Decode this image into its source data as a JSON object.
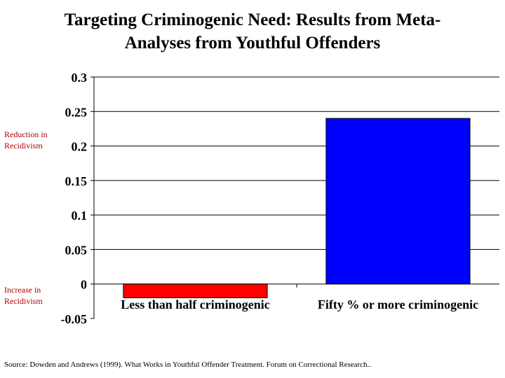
{
  "title_lines": [
    "Targeting Criminogenic Need: Results from Meta-",
    "Analyses from Youthful Offenders"
  ],
  "side_notes": {
    "reduction": "Reduction in Recidivism",
    "increase": "Increase in Recidivism"
  },
  "source": "Source:  Dowden and Andrews (1999).  What Works in Youthful Offender Treatment. Forum on Correctional Research..",
  "chart_data": {
    "type": "bar",
    "title": "Targeting Criminogenic Need: Results from Meta-Analyses from Youthful Offenders",
    "categories": [
      "Less than half criminogenic",
      "Fifty % or more criminogenic"
    ],
    "values": [
      -0.02,
      0.24
    ],
    "colors": [
      "#ff0000",
      "#0000ff"
    ],
    "ylim": [
      -0.05,
      0.3
    ],
    "yticks": [
      0.3,
      0.25,
      0.2,
      0.15,
      0.1,
      0.05,
      0,
      -0.05
    ],
    "ytick_labels": [
      "0.3",
      "0.25",
      "0.2",
      "0.15",
      "0.1",
      "0.05",
      "0",
      "-0.05"
    ],
    "xlabel": "",
    "ylabel": "",
    "grid": true,
    "legend": false
  }
}
